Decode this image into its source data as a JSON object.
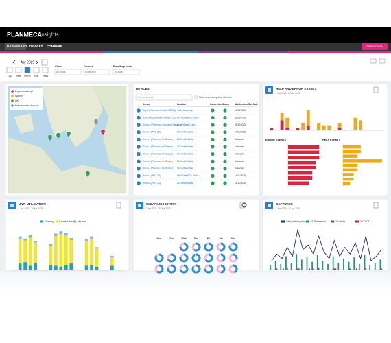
{
  "header": {
    "brand": "PLANMECA",
    "product": "Insights",
    "nav": [
      "DASHBOARD",
      "DEVICES",
      "COMPARE"
    ],
    "learn_more": "Learn more"
  },
  "filters": {
    "period": "Apr 2025",
    "views": [
      "Day",
      "Week",
      "Month",
      "Year",
      "Years"
    ],
    "clinic_label": "Clinic",
    "clinic_value": "All clinics",
    "devices_label": "Devices",
    "devices_value": "All devices",
    "codes_label": "Error/help codes",
    "codes_value": "All codes"
  },
  "map": {
    "legend": [
      "Exposure attempt",
      "Warning",
      "OK",
      "Not connected devices"
    ],
    "colors": [
      "#d7263d",
      "#f2b51c",
      "#2e9b57",
      "#8a8f98"
    ]
  },
  "devices": {
    "title": "DEVICES",
    "search": "Search devices",
    "toggle": "Show devices requiring attention",
    "columns": [
      "Device",
      "Location",
      "Connection",
      "Status",
      "Maintenance Due Date"
    ],
    "rows": [
      [
        "Ray 4 (Planmeca ProMax 3D Mid)",
        "Smile Workshop",
        "14/03/2026"
      ],
      [
        "Ray 14 (Planmeca ProMax 2D S3)",
        "UPH Dental Co. Turku",
        "31/01/2026"
      ],
      [
        "Room A (Planmeca Compact i Classic V2)",
        "Active Dental Clinic",
        "01/12/2025"
      ],
      [
        "Room 3 (PRO 3D)",
        "24 Dent Helsinki",
        "14/11/2025"
      ],
      [
        "Room 1 (Planmeca ProSensor)",
        "24 Dent Helsinki",
        "Unknown"
      ],
      [
        "Room 2 (Planmeca ProSensor)",
        "24 Dent Helsinki",
        "Unknown"
      ],
      [
        "Room 4 (Planmeca ProSensor)",
        "24 Dent Helsinki",
        "Unknown"
      ],
      [
        "Room 3 (Planmeca ProSensor)",
        "24 Dent Helsinki",
        "Unknown"
      ],
      [
        "Room 4 (Planmeca ProSensor)",
        "24 Dent Helsinki",
        "Unknown"
      ],
      [
        "Room 4 (PRO 3D)",
        "UPH Dental Co. Turku",
        "14/11/2025"
      ],
      [
        "Room A (PRO 3D)",
        "24 Dent Helsinki",
        "14/11/2025"
      ]
    ]
  },
  "chart_data": [
    {
      "type": "stacked-bar",
      "title": "HELP AND ERROR EVENTS",
      "subtitle": "1 Apr 2025 - 30 Apr 2025",
      "categories": [
        null,
        null,
        null,
        null,
        null,
        null,
        null,
        null,
        null,
        null,
        null,
        null,
        null,
        null,
        null,
        null,
        null,
        null,
        null,
        null,
        null,
        null
      ],
      "series": [
        {
          "color": "#d7263d",
          "values": [
            1,
            0,
            4,
            1,
            0,
            1,
            0,
            2,
            0,
            0,
            0,
            0,
            0,
            1,
            0,
            0,
            0,
            0,
            0,
            0,
            0,
            0
          ]
        },
        {
          "color": "#f0a81c",
          "values": [
            0,
            0,
            3,
            4,
            0,
            0,
            3,
            6,
            0,
            3,
            2,
            2,
            0,
            2,
            0,
            0,
            5,
            4,
            0,
            0,
            0,
            0
          ]
        }
      ],
      "ylim": [
        0,
        12
      ]
    },
    {
      "type": "hbar",
      "title": "ERROR EVENTS",
      "categories": [
        null,
        null,
        null,
        null,
        null,
        null,
        null,
        null
      ],
      "values": [
        9,
        9,
        9,
        8,
        8,
        7,
        7,
        6
      ],
      "color": "#d7263d",
      "xlim": [
        0,
        10
      ]
    },
    {
      "type": "hbar",
      "title": "HELP EVENTS",
      "categories": [
        null,
        null,
        null,
        null,
        null,
        null,
        null,
        null,
        null
      ],
      "values": [
        5,
        5,
        4,
        11,
        4,
        4,
        3,
        3,
        2
      ],
      "color": "#f0a81c",
      "xlim": [
        0,
        12
      ]
    },
    {
      "type": "stacked-bar",
      "title": "UNIT UTILISATION",
      "subtitle": "1 Apr 2025 - 30 Apr 2025",
      "categories": [
        null,
        null,
        null,
        null,
        null,
        null,
        null,
        null,
        null,
        null,
        null,
        null,
        null,
        null,
        null,
        null,
        null,
        null,
        null,
        null,
        null,
        null
      ],
      "series": [
        {
          "name": "Cleaning",
          "color": "#1fa3b5",
          "values": [
            0,
            15,
            18,
            10,
            16,
            0,
            0,
            12,
            10,
            8,
            12,
            15,
            0,
            0,
            10,
            12,
            8,
            0,
            0,
            10,
            0,
            0
          ]
        },
        {
          "name": "Patient time",
          "color": "#f2e52a",
          "values": [
            0,
            55,
            48,
            62,
            45,
            0,
            0,
            42,
            66,
            72,
            65,
            52,
            0,
            0,
            55,
            58,
            40,
            0,
            0,
            20,
            0,
            0
          ]
        },
        {
          "name": "Idle time",
          "color": "#7fb6e6",
          "values": [
            0,
            5,
            4,
            6,
            3,
            0,
            0,
            4,
            5,
            6,
            5,
            4,
            0,
            0,
            4,
            5,
            3,
            0,
            0,
            2,
            0,
            0
          ]
        }
      ],
      "ylim": [
        0,
        100
      ]
    },
    {
      "type": "donut-grid",
      "title": "CLEANING HISTORY",
      "subtitle": "1 Apr 2025 - 30 Apr 2025",
      "categories": [
        "Mon",
        "Tue",
        "Wed",
        "Thu",
        "Fri",
        "Sat",
        "Sun"
      ],
      "rows": [
        [
          null,
          null,
          75,
          60,
          90,
          55,
          80
        ],
        [
          85,
          70,
          80,
          95,
          65,
          40,
          30
        ],
        [
          60,
          80,
          70,
          85,
          75,
          50,
          45
        ]
      ],
      "color": "#2a8fd8",
      "remainder_color": "#f3b7d0"
    },
    {
      "type": "bar-line",
      "title": "CAPTURES",
      "subtitle": "1 Apr 2025 - 30 Apr 2025",
      "categories": [
        null,
        null,
        null,
        null,
        null,
        null,
        null,
        null,
        null,
        null,
        null,
        null,
        null,
        null,
        null,
        null,
        null,
        null,
        null,
        null,
        null,
        null
      ],
      "series": [
        {
          "name": "Total patient captures",
          "color": "#1f2f6b",
          "kind": "line",
          "values": [
            8,
            14,
            10,
            20,
            12,
            36,
            18,
            22,
            14,
            30,
            16,
            10,
            26,
            12,
            20,
            14,
            24,
            10,
            30,
            8,
            12,
            18
          ]
        },
        {
          "name": "2D Panoramics",
          "color": "#1f9a6a",
          "kind": "bar",
          "values": [
            4,
            8,
            5,
            12,
            6,
            14,
            9,
            11,
            7,
            13,
            8,
            5,
            12,
            6,
            10,
            7,
            11,
            5,
            13,
            4,
            6,
            9
          ]
        },
        {
          "name": "2D Cephs",
          "color": "#7b3fa0",
          "kind": "bar",
          "values": [
            0,
            1,
            0,
            2,
            0,
            1,
            0,
            0,
            1,
            2,
            0,
            0,
            1,
            0,
            0,
            1,
            0,
            0,
            2,
            0,
            0,
            1
          ]
        },
        {
          "name": "3D CBCT",
          "color": "#c2185b",
          "kind": "bar",
          "values": [
            0,
            0,
            1,
            0,
            0,
            1,
            0,
            1,
            0,
            0,
            0,
            0,
            1,
            0,
            0,
            0,
            1,
            0,
            0,
            0,
            0,
            0
          ]
        }
      ],
      "ylim": [
        0,
        40
      ]
    }
  ]
}
